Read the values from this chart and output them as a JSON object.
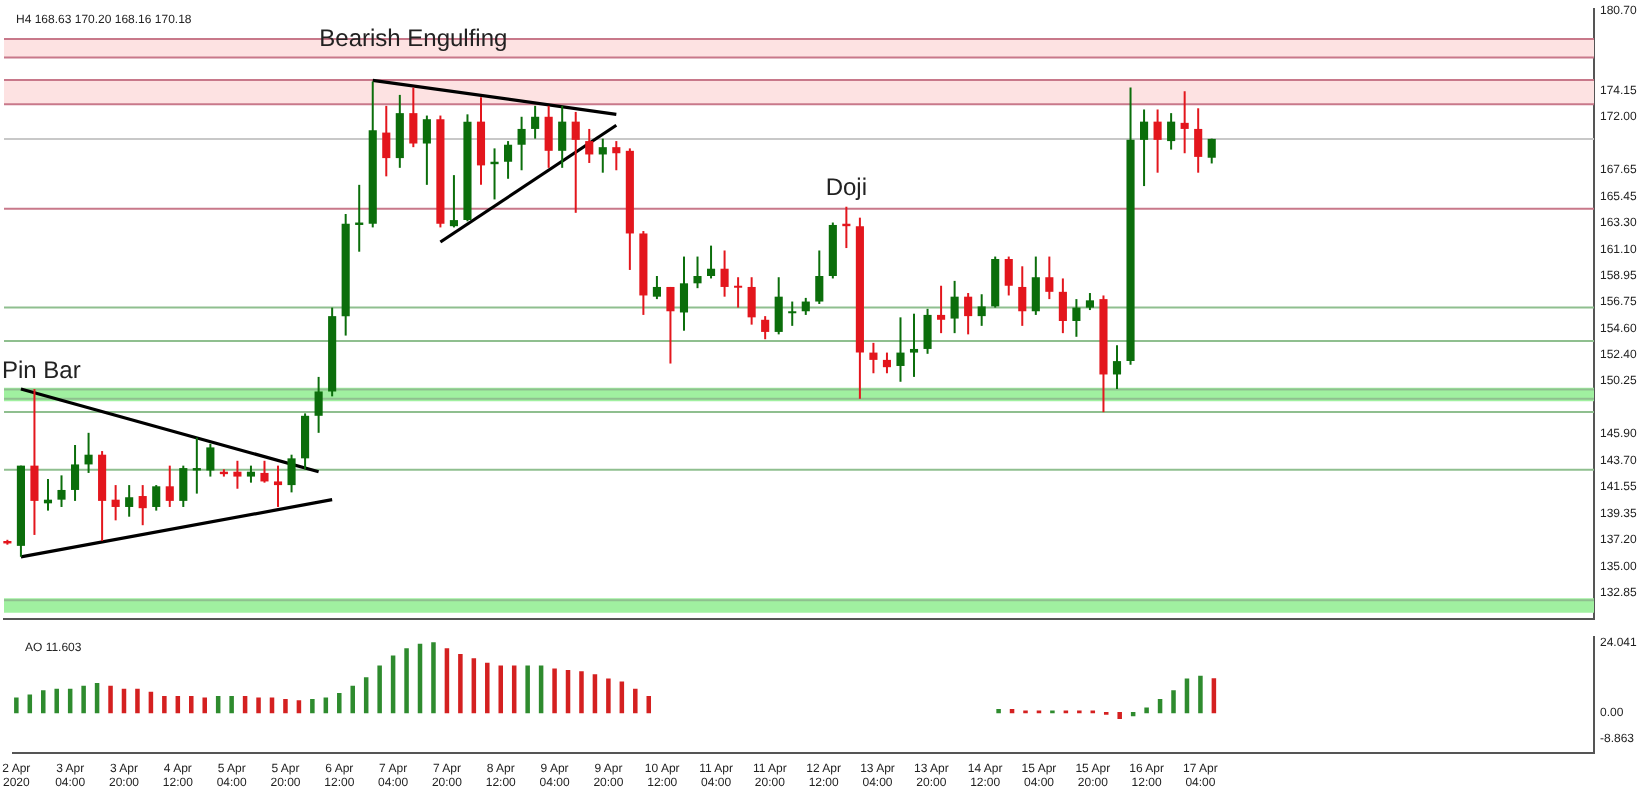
{
  "chart_data": [
    {
      "type": "candlestick",
      "title": "H4 168.63 170.20 168.16 170.18",
      "x": [
        "2020-04-02T12:00",
        "2020-04-02T16:00",
        "2020-04-02T20:00",
        "2020-04-03T00:00",
        "2020-04-03T04:00",
        "2020-04-03T08:00",
        "2020-04-03T12:00",
        "2020-04-03T16:00",
        "2020-04-03T20:00",
        "2020-04-04T00:00",
        "2020-04-04T04:00",
        "2020-04-04T08:00",
        "2020-04-04T12:00",
        "2020-04-04T16:00",
        "2020-04-04T20:00",
        "2020-04-05T00:00",
        "2020-04-05T04:00",
        "2020-04-05T08:00",
        "2020-04-05T12:00",
        "2020-04-05T16:00",
        "2020-04-05T20:00",
        "2020-04-06T00:00",
        "2020-04-06T04:00",
        "2020-04-06T08:00",
        "2020-04-06T12:00",
        "2020-04-06T16:00",
        "2020-04-06T20:00",
        "2020-04-07T00:00",
        "2020-04-07T04:00",
        "2020-04-07T08:00",
        "2020-04-07T12:00",
        "2020-04-07T16:00",
        "2020-04-07T20:00",
        "2020-04-08T00:00",
        "2020-04-08T04:00",
        "2020-04-08T08:00",
        "2020-04-08T12:00",
        "2020-04-08T16:00",
        "2020-04-08T20:00",
        "2020-04-09T00:00",
        "2020-04-09T04:00",
        "2020-04-09T08:00",
        "2020-04-09T12:00",
        "2020-04-09T16:00",
        "2020-04-09T20:00",
        "2020-04-10T00:00",
        "2020-04-10T04:00",
        "2020-04-10T08:00",
        "2020-04-10T12:00",
        "2020-04-10T16:00",
        "2020-04-10T20:00",
        "2020-04-11T00:00",
        "2020-04-11T04:00",
        "2020-04-11T08:00",
        "2020-04-11T12:00",
        "2020-04-11T16:00",
        "2020-04-11T20:00",
        "2020-04-12T00:00",
        "2020-04-12T04:00",
        "2020-04-12T08:00",
        "2020-04-12T12:00",
        "2020-04-12T16:00",
        "2020-04-12T20:00",
        "2020-04-13T00:00",
        "2020-04-13T04:00",
        "2020-04-13T08:00",
        "2020-04-13T12:00",
        "2020-04-13T16:00",
        "2020-04-13T20:00",
        "2020-04-14T00:00",
        "2020-04-14T04:00",
        "2020-04-14T08:00",
        "2020-04-14T12:00",
        "2020-04-14T16:00",
        "2020-04-14T20:00",
        "2020-04-15T00:00",
        "2020-04-15T04:00",
        "2020-04-15T08:00",
        "2020-04-15T12:00",
        "2020-04-15T16:00",
        "2020-04-15T20:00",
        "2020-04-16T00:00",
        "2020-04-16T04:00",
        "2020-04-16T08:00",
        "2020-04-16T12:00",
        "2020-04-16T16:00",
        "2020-04-16T20:00",
        "2020-04-17T00:00",
        "2020-04-17T04:00",
        "2020-04-17T08:00"
      ],
      "ohlc": [
        [
          137.1,
          137.2,
          136.8,
          136.9
        ],
        [
          136.7,
          143.3,
          135.8,
          143.3
        ],
        [
          143.3,
          149.6,
          137.6,
          140.4
        ],
        [
          140.2,
          142.2,
          139.6,
          140.5
        ],
        [
          140.5,
          142.5,
          139.9,
          141.3
        ],
        [
          141.3,
          145.0,
          140.4,
          143.4
        ],
        [
          143.4,
          146.0,
          142.7,
          144.2
        ],
        [
          144.2,
          144.5,
          137.1,
          140.4
        ],
        [
          140.5,
          141.7,
          138.8,
          139.9
        ],
        [
          139.9,
          141.7,
          139.1,
          140.7
        ],
        [
          140.8,
          141.7,
          138.4,
          139.8
        ],
        [
          139.9,
          141.7,
          139.6,
          141.6
        ],
        [
          141.6,
          143.3,
          139.9,
          140.4
        ],
        [
          140.4,
          143.3,
          139.9,
          143.1
        ],
        [
          142.9,
          145.6,
          141.0,
          143.1
        ],
        [
          142.9,
          145.1,
          142.4,
          144.8
        ],
        [
          142.8,
          143.0,
          142.4,
          142.6
        ],
        [
          142.8,
          143.7,
          141.4,
          142.4
        ],
        [
          142.4,
          143.3,
          141.9,
          142.8
        ],
        [
          142.7,
          143.7,
          141.9,
          142.0
        ],
        [
          142.0,
          143.3,
          139.9,
          141.7
        ],
        [
          141.7,
          144.2,
          141.1,
          143.9
        ],
        [
          143.9,
          147.6,
          143.0,
          147.4
        ],
        [
          147.4,
          150.6,
          146.0,
          149.4
        ],
        [
          149.4,
          156.3,
          149.0,
          155.6
        ],
        [
          155.6,
          164.0,
          154.0,
          163.2
        ],
        [
          163.1,
          166.4,
          160.9,
          163.3
        ],
        [
          163.2,
          174.9,
          162.9,
          170.9
        ],
        [
          170.7,
          172.9,
          167.1,
          168.6
        ],
        [
          168.6,
          173.8,
          167.8,
          172.3
        ],
        [
          172.3,
          174.4,
          169.5,
          169.8
        ],
        [
          169.8,
          172.1,
          166.4,
          171.8
        ],
        [
          171.8,
          172.1,
          162.9,
          163.2
        ],
        [
          163.0,
          167.2,
          162.9,
          163.5
        ],
        [
          163.5,
          172.2,
          163.4,
          171.6
        ],
        [
          171.6,
          173.6,
          166.4,
          168.0
        ],
        [
          168.1,
          169.4,
          165.2,
          168.3
        ],
        [
          168.3,
          170.0,
          166.9,
          169.7
        ],
        [
          169.7,
          172.0,
          167.6,
          171.0
        ],
        [
          171.0,
          172.9,
          170.2,
          172.0
        ],
        [
          172.0,
          172.9,
          167.8,
          169.2
        ],
        [
          169.2,
          172.9,
          167.8,
          171.6
        ],
        [
          171.6,
          172.4,
          164.1,
          170.1
        ],
        [
          170.0,
          171.0,
          168.2,
          168.9
        ],
        [
          168.9,
          170.2,
          167.4,
          169.5
        ],
        [
          169.5,
          170.0,
          167.6,
          169.0
        ],
        [
          169.2,
          169.4,
          159.4,
          162.4
        ],
        [
          162.4,
          162.6,
          155.7,
          157.3
        ],
        [
          157.2,
          158.9,
          157.0,
          158.0
        ],
        [
          158.0,
          158.0,
          151.7,
          156.0
        ],
        [
          155.9,
          160.5,
          154.4,
          158.3
        ],
        [
          158.3,
          160.5,
          157.9,
          158.9
        ],
        [
          158.9,
          161.4,
          158.7,
          159.5
        ],
        [
          159.5,
          161.0,
          157.2,
          158.0
        ],
        [
          158.1,
          158.8,
          156.3,
          158.0
        ],
        [
          158.0,
          158.8,
          154.9,
          155.5
        ],
        [
          155.3,
          155.6,
          153.7,
          154.3
        ],
        [
          154.3,
          158.8,
          154.1,
          157.2
        ],
        [
          155.9,
          156.8,
          154.8,
          156.0
        ],
        [
          156.0,
          157.1,
          155.7,
          156.8
        ],
        [
          156.8,
          161.0,
          156.6,
          158.9
        ],
        [
          158.9,
          163.3,
          158.7,
          163.1
        ],
        [
          163.2,
          164.6,
          161.2,
          163.0
        ],
        [
          163.0,
          163.7,
          148.8,
          152.6
        ],
        [
          152.6,
          153.4,
          150.9,
          152.0
        ],
        [
          152.0,
          152.6,
          150.9,
          151.4
        ],
        [
          151.5,
          155.5,
          150.2,
          152.6
        ],
        [
          152.6,
          155.8,
          150.6,
          152.9
        ],
        [
          152.9,
          156.2,
          152.5,
          155.7
        ],
        [
          155.7,
          158.1,
          154.2,
          155.3
        ],
        [
          155.4,
          158.5,
          154.2,
          157.2
        ],
        [
          157.2,
          157.5,
          154.1,
          155.6
        ],
        [
          155.6,
          157.4,
          154.8,
          156.4
        ],
        [
          156.4,
          160.5,
          156.3,
          160.3
        ],
        [
          160.3,
          160.5,
          157.3,
          158.1
        ],
        [
          158.0,
          159.7,
          154.8,
          156.0
        ],
        [
          156.0,
          160.5,
          155.7,
          158.8
        ],
        [
          158.8,
          160.5,
          157.0,
          157.6
        ],
        [
          157.6,
          158.7,
          154.2,
          155.2
        ],
        [
          155.2,
          157.0,
          153.9,
          156.3
        ],
        [
          156.3,
          157.5,
          156.1,
          156.9
        ],
        [
          157.0,
          157.3,
          147.7,
          150.8
        ],
        [
          150.8,
          153.2,
          149.6,
          151.9
        ],
        [
          151.9,
          174.4,
          151.6,
          170.1
        ],
        [
          170.1,
          172.6,
          166.3,
          171.6
        ],
        [
          171.6,
          172.6,
          167.4,
          170.1
        ],
        [
          170.0,
          172.3,
          169.3,
          171.6
        ],
        [
          171.5,
          174.1,
          169.0,
          171.0
        ],
        [
          171.0,
          172.7,
          167.4,
          168.7
        ],
        [
          168.63,
          170.2,
          168.16,
          170.18
        ]
      ],
      "colors": [
        "#e3161d",
        "#0b6e0b",
        "#e3161d",
        "#0b6e0b",
        "#0b6e0b",
        "#0b6e0b",
        "#0b6e0b",
        "#e3161d",
        "#e3161d",
        "#0b6e0b",
        "#e3161d",
        "#0b6e0b",
        "#e3161d",
        "#0b6e0b",
        "#0b6e0b",
        "#0b6e0b",
        "#e3161d",
        "#e3161d",
        "#0b6e0b",
        "#e3161d",
        "#e3161d",
        "#0b6e0b",
        "#0b6e0b",
        "#0b6e0b",
        "#0b6e0b",
        "#0b6e0b",
        "#0b6e0b",
        "#0b6e0b",
        "#e3161d",
        "#0b6e0b",
        "#e3161d",
        "#0b6e0b",
        "#e3161d",
        "#0b6e0b",
        "#0b6e0b",
        "#e3161d",
        "#0b6e0b",
        "#0b6e0b",
        "#0b6e0b",
        "#0b6e0b",
        "#e3161d",
        "#0b6e0b",
        "#e3161d",
        "#e3161d",
        "#0b6e0b",
        "#e3161d",
        "#e3161d",
        "#e3161d",
        "#0b6e0b",
        "#e3161d",
        "#0b6e0b",
        "#0b6e0b",
        "#0b6e0b",
        "#e3161d",
        "#e3161d",
        "#e3161d",
        "#e3161d",
        "#0b6e0b",
        "#0b6e0b",
        "#0b6e0b",
        "#0b6e0b",
        "#0b6e0b",
        "#e3161d",
        "#e3161d",
        "#e3161d",
        "#e3161d",
        "#0b6e0b",
        "#0b6e0b",
        "#0b6e0b",
        "#e3161d",
        "#0b6e0b",
        "#e3161d",
        "#0b6e0b",
        "#0b6e0b",
        "#e3161d",
        "#e3161d",
        "#0b6e0b",
        "#e3161d",
        "#e3161d",
        "#0b6e0b",
        "#0b6e0b",
        "#e3161d",
        "#0b6e0b",
        "#0b6e0b",
        "#0b6e0b",
        "#e3161d",
        "#0b6e0b",
        "#e3161d",
        "#e3161d",
        "#0b6e0b"
      ],
      "series": [
        {
          "type": "line",
          "color": "#000000",
          "x": [
            "2020-04-02T16:00",
            "2020-04-06T08:00"
          ],
          "values": [
            149.6,
            142.8
          ]
        },
        {
          "type": "line",
          "color": "#000000",
          "x": [
            "2020-04-02T16:00",
            "2020-04-06T12:00"
          ],
          "values": [
            135.8,
            140.5
          ]
        },
        {
          "type": "line",
          "color": "#000000",
          "x": [
            "2020-04-07T00:00",
            "2020-04-10T00:00"
          ],
          "values": [
            175.0,
            172.2
          ]
        },
        {
          "type": "line",
          "color": "#000000",
          "x": [
            "2020-04-07T20:00",
            "2020-04-10T00:00"
          ],
          "values": [
            161.7,
            171.3
          ]
        }
      ],
      "xlim": [
        "2020-04-02T11:00",
        "2020-04-22T01:00"
      ],
      "ylim": [
        130.7,
        180.85
      ],
      "yticks": [
        {
          "value": 180.7,
          "label": "180.70"
        },
        {
          "value": 174.15,
          "label": "174.15"
        },
        {
          "value": 172,
          "label": "172.00"
        },
        {
          "value": 167.65,
          "label": "167.65"
        },
        {
          "value": 165.45,
          "label": "165.45"
        },
        {
          "value": 163.3,
          "label": "163.30"
        },
        {
          "value": 161.1,
          "label": "161.10"
        },
        {
          "value": 158.95,
          "label": "158.95"
        },
        {
          "value": 156.75,
          "label": "156.75"
        },
        {
          "value": 154.6,
          "label": "154.60"
        },
        {
          "value": 152.4,
          "label": "152.40"
        },
        {
          "value": 150.25,
          "label": "150.25"
        },
        {
          "value": 145.9,
          "label": "145.90"
        },
        {
          "value": 143.7,
          "label": "143.70"
        },
        {
          "value": 141.55,
          "label": "141.55"
        },
        {
          "value": 139.35,
          "label": "139.35"
        },
        {
          "value": 137.2,
          "label": "137.20"
        },
        {
          "value": 135,
          "label": "135.00"
        },
        {
          "value": 132.85,
          "label": "132.85"
        }
      ],
      "tick_labels": "y",
      "bands": [
        {
          "axis": "y",
          "from": 176.87,
          "to": 178.4,
          "color": "#fde2e2"
        },
        {
          "axis": "y",
          "from": 173.03,
          "to": 175.03,
          "color": "#fde2e2"
        },
        {
          "axis": "y",
          "from": 148.6,
          "to": 149.7,
          "color": "#a0f0a0"
        },
        {
          "axis": "y",
          "from": 131.2,
          "to": 132.4,
          "color": "#a0f0a0"
        }
      ],
      "ref_lines": [
        {
          "axis": "y",
          "value": 178.4,
          "color": "#c8788a"
        },
        {
          "axis": "y",
          "value": 176.87,
          "color": "#c8788a"
        },
        {
          "axis": "y",
          "value": 175.03,
          "color": "#c8788a"
        },
        {
          "axis": "y",
          "value": 173.03,
          "color": "#c8788a"
        },
        {
          "axis": "y",
          "value": 164.44,
          "color": "#c8788a"
        },
        {
          "axis": "y",
          "value": 170.18,
          "color": "#c8c8c8"
        },
        {
          "axis": "y",
          "value": 156.31,
          "color": "#8fbf8f"
        },
        {
          "axis": "y",
          "value": 153.55,
          "color": "#8fbf8f"
        },
        {
          "axis": "y",
          "value": 149.56,
          "color": "#8fbf8f"
        },
        {
          "axis": "y",
          "value": 148.8,
          "color": "#8fbf8f"
        },
        {
          "axis": "y",
          "value": 147.72,
          "color": "#8fbf8f"
        },
        {
          "axis": "y",
          "value": 142.97,
          "color": "#8fbf8f"
        },
        {
          "axis": "y",
          "value": 132.23,
          "color": "#8fbf8f"
        }
      ],
      "annotations": [
        {
          "text": "Bearish Engulfing",
          "x": "2020-04-07T12:00",
          "y": 176.87
        },
        {
          "text": "Doji",
          "x": "2020-04-12T20:00",
          "y": 164.6
        },
        {
          "text": "Pin Bar",
          "x": "2020-04-02T20:00",
          "y": 149.6
        }
      ]
    },
    {
      "type": "bar",
      "title": "AO 11.603",
      "x": [
        "2020-04-02T12:00",
        "2020-04-02T16:00",
        "2020-04-02T20:00",
        "2020-04-03T00:00",
        "2020-04-03T04:00",
        "2020-04-03T08:00",
        "2020-04-03T12:00",
        "2020-04-03T16:00",
        "2020-04-03T20:00",
        "2020-04-04T00:00",
        "2020-04-04T04:00",
        "2020-04-04T08:00",
        "2020-04-04T12:00",
        "2020-04-04T16:00",
        "2020-04-04T20:00",
        "2020-04-05T00:00",
        "2020-04-05T04:00",
        "2020-04-05T08:00",
        "2020-04-05T12:00",
        "2020-04-05T16:00",
        "2020-04-05T20:00",
        "2020-04-06T00:00",
        "2020-04-06T04:00",
        "2020-04-06T08:00",
        "2020-04-06T12:00",
        "2020-04-06T16:00",
        "2020-04-06T20:00",
        "2020-04-07T00:00",
        "2020-04-07T04:00",
        "2020-04-07T08:00",
        "2020-04-07T12:00",
        "2020-04-07T16:00",
        "2020-04-07T20:00",
        "2020-04-08T00:00",
        "2020-04-08T04:00",
        "2020-04-08T08:00",
        "2020-04-08T12:00",
        "2020-04-08T16:00",
        "2020-04-08T20:00",
        "2020-04-09T00:00",
        "2020-04-09T04:00",
        "2020-04-09T08:00",
        "2020-04-09T12:00",
        "2020-04-09T16:00",
        "2020-04-09T20:00",
        "2020-04-10T00:00",
        "2020-04-10T04:00",
        "2020-04-10T08:00",
        "2020-04-10T12:00",
        "2020-04-10T16:00",
        "2020-04-10T20:00",
        "2020-04-11T00:00",
        "2020-04-11T04:00",
        "2020-04-11T08:00",
        "2020-04-11T12:00",
        "2020-04-11T16:00",
        "2020-04-11T20:00",
        "2020-04-12T00:00",
        "2020-04-12T04:00",
        "2020-04-12T08:00",
        "2020-04-12T12:00",
        "2020-04-12T16:00",
        "2020-04-12T20:00",
        "2020-04-13T00:00",
        "2020-04-13T04:00",
        "2020-04-13T08:00",
        "2020-04-13T12:00",
        "2020-04-13T16:00",
        "2020-04-13T20:00",
        "2020-04-14T00:00",
        "2020-04-14T04:00",
        "2020-04-14T08:00",
        "2020-04-14T12:00",
        "2020-04-14T16:00",
        "2020-04-14T20:00",
        "2020-04-15T00:00",
        "2020-04-15T04:00",
        "2020-04-15T08:00",
        "2020-04-15T12:00",
        "2020-04-15T16:00",
        "2020-04-15T20:00",
        "2020-04-16T00:00",
        "2020-04-16T04:00",
        "2020-04-16T08:00",
        "2020-04-16T12:00",
        "2020-04-16T16:00",
        "2020-04-16T20:00",
        "2020-04-17T00:00",
        "2020-04-17T04:00",
        "2020-04-17T08:00"
      ],
      "values": [
        5,
        6,
        7.5,
        8,
        8,
        9,
        10,
        9,
        8,
        8,
        7,
        5.5,
        5.5,
        5.5,
        5,
        5.5,
        5.5,
        5.5,
        5,
        5,
        4.5,
        4,
        4.5,
        5,
        6.5,
        9,
        12,
        16,
        19.5,
        22,
        23.5,
        24,
        22,
        20,
        18.5,
        17,
        16,
        16,
        16,
        16,
        15,
        14.5,
        14,
        13,
        11.5,
        10.5,
        8,
        5.5,
        null,
        null,
        null,
        null,
        null,
        null,
        null,
        null,
        null,
        null,
        null,
        null,
        null,
        null,
        null,
        null,
        null,
        null,
        null,
        null,
        null,
        null,
        null,
        null,
        null,
        1,
        1,
        0.5,
        0.5,
        0.5,
        0.5,
        0.5,
        0.5,
        -0.5,
        -2,
        -1,
        1.5,
        4.5,
        7.5,
        11.5,
        12.5,
        11.603
      ],
      "colors": [
        "#2e8b2e",
        "#2e8b2e",
        "#2e8b2e",
        "#2e8b2e",
        "#2e8b2e",
        "#2e8b2e",
        "#2e8b2e",
        "#d42020",
        "#d42020",
        "#d42020",
        "#d42020",
        "#d42020",
        "#d42020",
        "#d42020",
        "#d42020",
        "#2e8b2e",
        "#2e8b2e",
        "#d42020",
        "#d42020",
        "#d42020",
        "#d42020",
        "#d42020",
        "#2e8b2e",
        "#2e8b2e",
        "#2e8b2e",
        "#2e8b2e",
        "#2e8b2e",
        "#2e8b2e",
        "#2e8b2e",
        "#2e8b2e",
        "#2e8b2e",
        "#2e8b2e",
        "#d42020",
        "#d42020",
        "#d42020",
        "#d42020",
        "#d42020",
        "#d42020",
        "#2e8b2e",
        "#2e8b2e",
        "#d42020",
        "#d42020",
        "#d42020",
        "#d42020",
        "#d42020",
        "#d42020",
        "#d42020",
        "#d42020",
        "#d42020",
        "#d42020",
        "#d42020",
        "#d42020",
        "#d42020",
        "#d42020",
        "#d42020",
        "#d42020",
        "#d42020",
        "#d42020",
        "#d42020",
        "#d42020",
        "#d42020",
        "#d42020",
        "#d42020",
        "#d42020",
        "#d42020",
        "#d42020",
        "#d42020",
        "#d42020",
        "#d42020",
        "#d42020",
        "#d42020",
        "#d42020",
        "#d42020",
        "#2e8b2e",
        "#d42020",
        "#d42020",
        "#d42020",
        "#2e8b2e",
        "#d42020",
        "#d42020",
        "#d42020",
        "#d42020",
        "#d42020",
        "#2e8b2e",
        "#2e8b2e",
        "#2e8b2e",
        "#2e8b2e",
        "#2e8b2e",
        "#2e8b2e",
        "#d42020"
      ],
      "xlim": [
        "2020-04-02T11:00",
        "2020-04-22T01:00"
      ],
      "xticks": [
        {
          "value": "2020-04-02T12:00",
          "label": "2 Apr 2020"
        },
        {
          "value": "2020-04-03T04:00",
          "label": "3 Apr 04:00"
        },
        {
          "value": "2020-04-03T20:00",
          "label": "3 Apr 20:00"
        },
        {
          "value": "2020-04-04T12:00",
          "label": "4 Apr 12:00"
        },
        {
          "value": "2020-04-05T04:00",
          "label": "5 Apr 04:00"
        },
        {
          "value": "2020-04-05T20:00",
          "label": "5 Apr 20:00"
        },
        {
          "value": "2020-04-06T12:00",
          "label": "6 Apr 12:00"
        },
        {
          "value": "2020-04-07T04:00",
          "label": "7 Apr 04:00"
        },
        {
          "value": "2020-04-07T20:00",
          "label": "7 Apr 20:00"
        },
        {
          "value": "2020-04-08T12:00",
          "label": "8 Apr 12:00"
        },
        {
          "value": "2020-04-09T04:00",
          "label": "9 Apr 04:00"
        },
        {
          "value": "2020-04-09T20:00",
          "label": "9 Apr 20:00"
        },
        {
          "value": "2020-04-10T12:00",
          "label": "10 Apr 12:00"
        },
        {
          "value": "2020-04-11T04:00",
          "label": "11 Apr 04:00"
        },
        {
          "value": "2020-04-11T20:00",
          "label": "11 Apr 20:00"
        },
        {
          "value": "2020-04-12T12:00",
          "label": "12 Apr 12:00"
        },
        {
          "value": "2020-04-13T04:00",
          "label": "13 Apr 04:00"
        },
        {
          "value": "2020-04-13T20:00",
          "label": "13 Apr 20:00"
        },
        {
          "value": "2020-04-14T12:00",
          "label": "14 Apr 12:00"
        },
        {
          "value": "2020-04-15T04:00",
          "label": "15 Apr 04:00"
        },
        {
          "value": "2020-04-15T20:00",
          "label": "15 Apr 20:00"
        },
        {
          "value": "2020-04-16T12:00",
          "label": "16 Apr 12:00"
        },
        {
          "value": "2020-04-17T04:00",
          "label": "17 Apr 04:00"
        }
      ],
      "ylim": [
        -14,
        26
      ],
      "yticks": [
        24.041,
        {
          "value": 0,
          "label": "0.00"
        },
        -8.863
      ]
    }
  ]
}
